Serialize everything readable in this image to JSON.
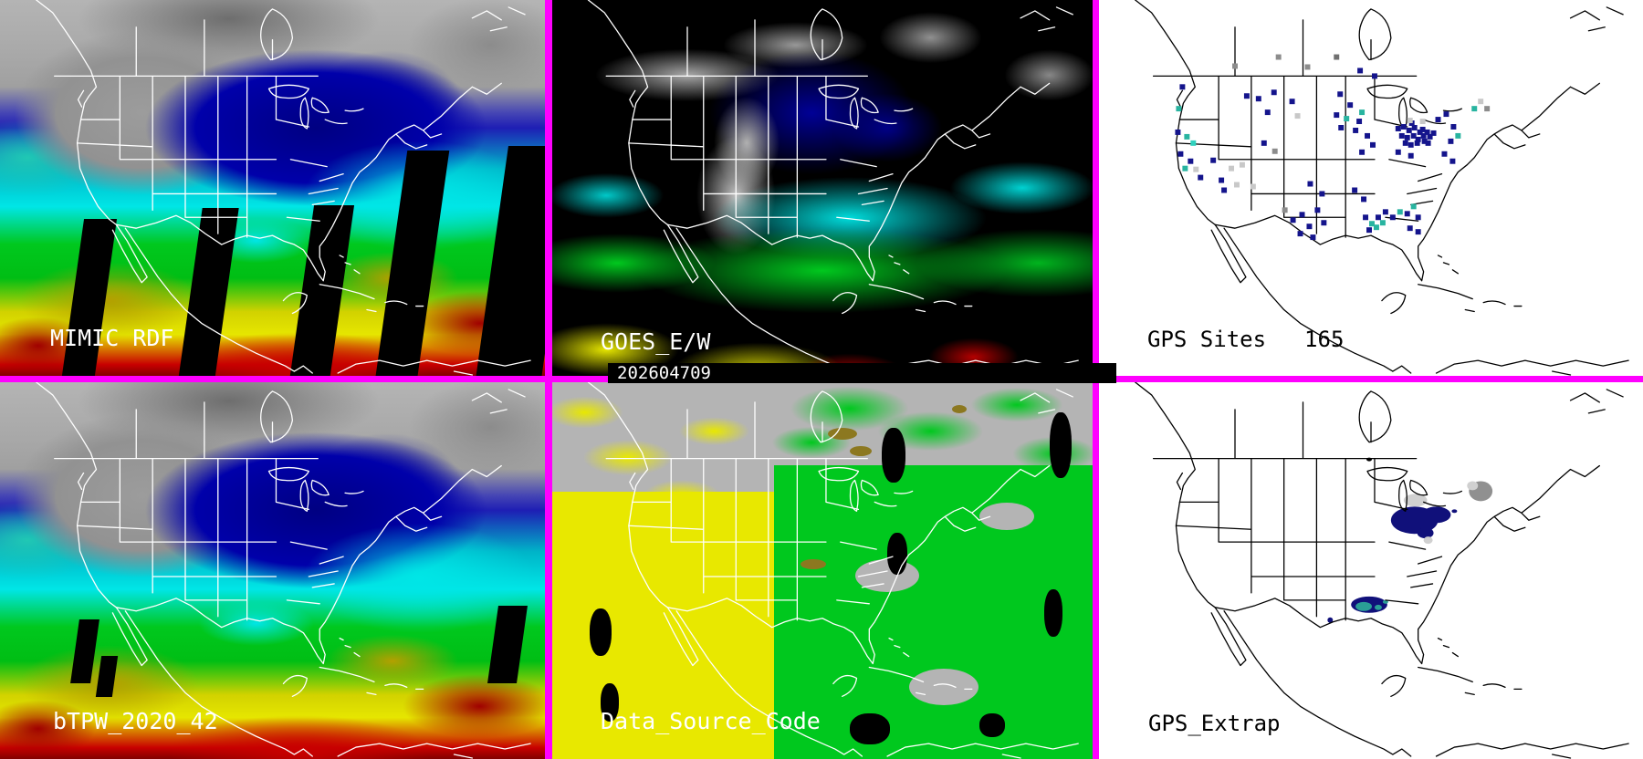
{
  "panels": {
    "mimic": {
      "label": "MIMIC RDF"
    },
    "goes": {
      "label": "GOES_E/W",
      "timestamp": "202604709"
    },
    "gps_sites": {
      "label": "GPS Sites",
      "count": "165"
    },
    "btpw": {
      "label": "bTPW_2020_42"
    },
    "data_source_code": {
      "label": "Data_Source_Code"
    },
    "gps_extrap": {
      "label": "GPS_Extrap"
    }
  },
  "colors": {
    "divider_magenta": "#ff00ff",
    "tpw_gray": "#a8a8a8",
    "tpw_navy": "#0000a0",
    "tpw_cyan": "#00e6e6",
    "tpw_green": "#00c81e",
    "tpw_yellow": "#e6e600",
    "tpw_red": "#c80000",
    "dsc_gray": "#b4b4b4",
    "dsc_yellow": "#e8e800",
    "dsc_green": "#00c81e",
    "dsc_brown": "#8c7820",
    "map_outline_sat": "#ffffff",
    "map_outline_gps": "#000000"
  },
  "gps_sites_map": {
    "dot_colors": {
      "n": "#14148c",
      "t": "#28b4a0",
      "t2": "#30d2be",
      "g": "#8c8c8c",
      "dg": "#707070",
      "lg": "#c8c8c8"
    },
    "dots": [
      [
        198,
        63,
        "g"
      ],
      [
        262,
        63,
        "dg"
      ],
      [
        150,
        73,
        "g"
      ],
      [
        230,
        74,
        "g"
      ],
      [
        288,
        78,
        "n"
      ],
      [
        304,
        84,
        "n"
      ],
      [
        92,
        96,
        "n"
      ],
      [
        88,
        120,
        "t"
      ],
      [
        163,
        106,
        "n"
      ],
      [
        176,
        109,
        "n"
      ],
      [
        193,
        102,
        "n"
      ],
      [
        213,
        112,
        "n"
      ],
      [
        219,
        128,
        "lg"
      ],
      [
        186,
        124,
        "n"
      ],
      [
        87,
        146,
        "n"
      ],
      [
        97,
        151,
        "t"
      ],
      [
        104,
        158,
        "t2"
      ],
      [
        90,
        170,
        "n"
      ],
      [
        101,
        178,
        "n"
      ],
      [
        107,
        187,
        "lg"
      ],
      [
        95,
        186,
        "t"
      ],
      [
        112,
        196,
        "n"
      ],
      [
        126,
        177,
        "n"
      ],
      [
        146,
        186,
        "lg"
      ],
      [
        135,
        199,
        "n"
      ],
      [
        158,
        182,
        "lg"
      ],
      [
        138,
        210,
        "n"
      ],
      [
        152,
        204,
        "lg"
      ],
      [
        170,
        206,
        "lg"
      ],
      [
        182,
        158,
        "n"
      ],
      [
        194,
        167,
        "g"
      ],
      [
        233,
        203,
        "n"
      ],
      [
        246,
        214,
        "n"
      ],
      [
        205,
        232,
        "g"
      ],
      [
        214,
        243,
        "n"
      ],
      [
        224,
        237,
        "n"
      ],
      [
        232,
        250,
        "n"
      ],
      [
        241,
        232,
        "n"
      ],
      [
        222,
        258,
        "n"
      ],
      [
        236,
        262,
        "n"
      ],
      [
        248,
        246,
        "n"
      ],
      [
        266,
        104,
        "n"
      ],
      [
        277,
        116,
        "n"
      ],
      [
        262,
        127,
        "n"
      ],
      [
        273,
        131,
        "t"
      ],
      [
        267,
        141,
        "n"
      ],
      [
        283,
        144,
        "n"
      ],
      [
        290,
        124,
        "t"
      ],
      [
        287,
        134,
        "n"
      ],
      [
        296,
        150,
        "n"
      ],
      [
        302,
        160,
        "n"
      ],
      [
        290,
        168,
        "n"
      ],
      [
        330,
        142,
        "n"
      ],
      [
        336,
        140,
        "n"
      ],
      [
        342,
        144,
        "n"
      ],
      [
        348,
        141,
        "n"
      ],
      [
        354,
        146,
        "n"
      ],
      [
        334,
        150,
        "n"
      ],
      [
        340,
        152,
        "n"
      ],
      [
        347,
        150,
        "n"
      ],
      [
        352,
        154,
        "n"
      ],
      [
        358,
        150,
        "n"
      ],
      [
        362,
        146,
        "n"
      ],
      [
        338,
        158,
        "n"
      ],
      [
        344,
        160,
        "n"
      ],
      [
        351,
        158,
        "n"
      ],
      [
        359,
        156,
        "n"
      ],
      [
        365,
        151,
        "n"
      ],
      [
        357,
        143,
        "n"
      ],
      [
        363,
        158,
        "n"
      ],
      [
        369,
        147,
        "n"
      ],
      [
        345,
        136,
        "n"
      ],
      [
        343,
        133,
        "lg"
      ],
      [
        357,
        134,
        "lg"
      ],
      [
        330,
        168,
        "n"
      ],
      [
        344,
        172,
        "n"
      ],
      [
        374,
        132,
        "n"
      ],
      [
        383,
        126,
        "n"
      ],
      [
        391,
        140,
        "n"
      ],
      [
        388,
        156,
        "n"
      ],
      [
        396,
        150,
        "t"
      ],
      [
        381,
        170,
        "n"
      ],
      [
        390,
        178,
        "n"
      ],
      [
        414,
        120,
        "t"
      ],
      [
        421,
        112,
        "lg"
      ],
      [
        428,
        120,
        "g"
      ],
      [
        294,
        240,
        "n"
      ],
      [
        301,
        247,
        "t"
      ],
      [
        308,
        240,
        "n"
      ],
      [
        306,
        251,
        "t"
      ],
      [
        313,
        246,
        "t"
      ],
      [
        298,
        254,
        "n"
      ],
      [
        316,
        234,
        "n"
      ],
      [
        324,
        240,
        "n"
      ],
      [
        332,
        234,
        "t"
      ],
      [
        340,
        236,
        "n"
      ],
      [
        347,
        228,
        "t"
      ],
      [
        352,
        240,
        "n"
      ],
      [
        352,
        256,
        "n"
      ],
      [
        343,
        252,
        "n"
      ],
      [
        282,
        210,
        "n"
      ],
      [
        292,
        220,
        "n"
      ]
    ]
  },
  "gps_extrap_map": {
    "blob_colors": {
      "navy": "#10107a",
      "teal": "#2a9e96",
      "gray": "#909090",
      "lgray": "#d0d0d0",
      "black": "#000000"
    },
    "blobs": [
      [
        349,
        130,
        13,
        7,
        "lgray"
      ],
      [
        348,
        152,
        26,
        15,
        "navy"
      ],
      [
        372,
        146,
        16,
        9,
        "navy"
      ],
      [
        360,
        166,
        9,
        6,
        "navy"
      ],
      [
        363,
        174,
        5,
        4,
        "lgray"
      ],
      [
        421,
        120,
        13,
        11,
        "gray"
      ],
      [
        412,
        114,
        6,
        5,
        "lgray"
      ],
      [
        298,
        245,
        20,
        9,
        "navy"
      ],
      [
        292,
        247,
        9,
        5,
        "teal"
      ],
      [
        308,
        248,
        4,
        3,
        "teal"
      ],
      [
        316,
        242,
        3,
        2,
        "teal"
      ],
      [
        255,
        262,
        3,
        3,
        "navy"
      ],
      [
        392,
        142,
        3,
        2,
        "navy"
      ],
      [
        298,
        85,
        3,
        2,
        "black"
      ]
    ]
  }
}
